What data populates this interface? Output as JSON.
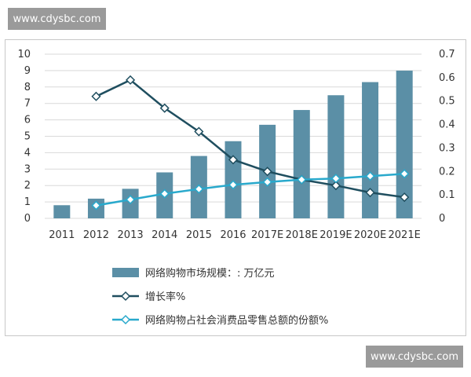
{
  "watermarks": {
    "top": "www.cdysbc.com",
    "bottom": "www.cdysbc.com"
  },
  "colors": {
    "bar": "#5b8fa6",
    "growth_line": "#1f4e5f",
    "share_line": "#29a9cc",
    "grid": "#d9d9d9",
    "text": "#333333"
  },
  "chart_data": {
    "type": "bar",
    "categories": [
      "2011",
      "2012",
      "2013",
      "2014",
      "2015",
      "2016",
      "2017E",
      "2018E",
      "2019E",
      "2020E",
      "2021E"
    ],
    "y_left": {
      "min": 0,
      "max": 10,
      "ticks": [
        "0",
        "1",
        "2",
        "3",
        "4",
        "5",
        "6",
        "7",
        "8",
        "9",
        "10"
      ]
    },
    "y_right": {
      "min": 0,
      "max": 0.7,
      "ticks": [
        "0",
        "0.1",
        "0.2",
        "0.3",
        "0.4",
        "0.5",
        "0.6",
        "0.7"
      ]
    },
    "grid": true,
    "legend_placement": "bottom",
    "series": [
      {
        "name": "网络购物市场规模：: 万亿元",
        "kind": "bar",
        "axis": "left",
        "values": [
          0.8,
          1.2,
          1.8,
          2.8,
          3.8,
          4.7,
          5.7,
          6.6,
          7.5,
          8.3,
          9.0
        ]
      },
      {
        "name": "增长率%",
        "kind": "line",
        "axis": "right",
        "values": [
          null,
          0.52,
          0.59,
          0.47,
          0.37,
          0.25,
          0.2,
          0.165,
          0.14,
          0.11,
          0.09
        ]
      },
      {
        "name": "网络购物占社会消费品零售总额的份额%",
        "kind": "line",
        "axis": "right",
        "values": [
          null,
          0.055,
          0.08,
          0.105,
          0.125,
          0.143,
          0.155,
          0.165,
          0.17,
          0.18,
          0.19
        ]
      }
    ]
  }
}
